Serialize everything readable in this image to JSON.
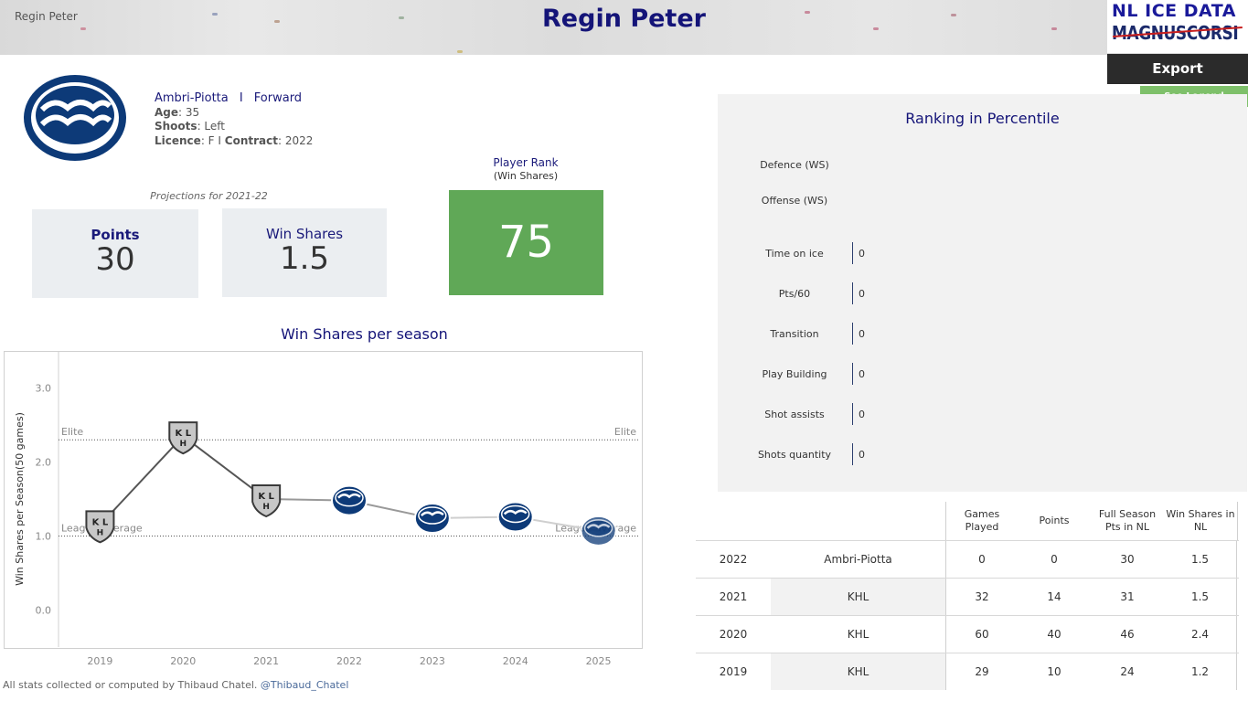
{
  "header": {
    "crumb": "Regin Peter",
    "title": "Regin Peter",
    "logo_line1": "NL ICE DATA",
    "logo_line2": "MAGNUSCORSI"
  },
  "actions": {
    "export_label": "Export",
    "legend_label": "See Legend"
  },
  "player": {
    "team": "Ambri-Piotta",
    "separator": "I",
    "position": "Forward",
    "age_label": "Age",
    "age": "35",
    "shoots_label": "Shoots",
    "shoots": "Left",
    "licence_label": "Licence",
    "licence": "F I",
    "contract_label": "Contract",
    "contract": "2022"
  },
  "projections": {
    "caption": "Projections for 2021-22",
    "points_label": "Points",
    "points_value": "30",
    "ws_label": "Win Shares",
    "ws_value": "1.5"
  },
  "player_rank": {
    "title": "Player Rank",
    "subtitle": "(Win Shares)",
    "value": "75",
    "color": "#60a857"
  },
  "chart_data": {
    "type": "line",
    "title": "Win Shares per season",
    "ylabel": "Win Shares per Season(50 games)",
    "xlabel": "",
    "x": [
      "2019",
      "2020",
      "2021",
      "2022",
      "2023",
      "2024",
      "2025"
    ],
    "series": [
      {
        "values": [
          1.15,
          2.35,
          1.5,
          1.48,
          1.24,
          1.26,
          1.07
        ],
        "team_icon": [
          "khl-logo",
          "khl-logo",
          "khl-logo",
          "ambri-logo",
          "ambri-logo",
          "ambri-logo",
          "ambri-logo"
        ]
      }
    ],
    "ylim": [
      -0.5,
      3.5
    ],
    "y_ticks": [
      "0.0",
      "1.0",
      "2.0",
      "3.0"
    ],
    "reference_lines": [
      {
        "label": "Elite",
        "value": 2.3
      },
      {
        "label": "League average",
        "value": 1.0
      }
    ],
    "grid": false
  },
  "ranking": {
    "title": "Ranking in Percentile",
    "categories": [
      {
        "label": "Defence (WS)"
      },
      {
        "label": "Offense (WS)"
      }
    ],
    "metrics": [
      {
        "label": "Time on ice",
        "value": "0"
      },
      {
        "label": "Pts/60",
        "value": "0"
      },
      {
        "label": "Transition",
        "value": "0"
      },
      {
        "label": "Play Building",
        "value": "0"
      },
      {
        "label": "Shot assists",
        "value": "0"
      },
      {
        "label": "Shots quantity",
        "value": "0"
      }
    ]
  },
  "table": {
    "headers": [
      "Games Played",
      "Points",
      "Full Season Pts in NL",
      "Win Shares in NL"
    ],
    "rows": [
      {
        "year": "2022",
        "team": "Ambri-Piotta",
        "gp": "0",
        "pts": "0",
        "full": "30",
        "ws": "1.5"
      },
      {
        "year": "2021",
        "team": "KHL",
        "gp": "32",
        "pts": "14",
        "full": "31",
        "ws": "1.5"
      },
      {
        "year": "2020",
        "team": "KHL",
        "gp": "60",
        "pts": "40",
        "full": "46",
        "ws": "2.4"
      },
      {
        "year": "2019",
        "team": "KHL",
        "gp": "29",
        "pts": "10",
        "full": "24",
        "ws": "1.2"
      }
    ]
  },
  "footer": {
    "text": "All stats collected or computed by Thibaud Chatel.",
    "handle": "@Thibaud_Chatel"
  },
  "colors": {
    "title": "#141478",
    "team_navy": "#0d3a78",
    "rank_green": "#60a857",
    "legend_green": "#7ec06a",
    "export_dark": "#2b2b2b"
  }
}
